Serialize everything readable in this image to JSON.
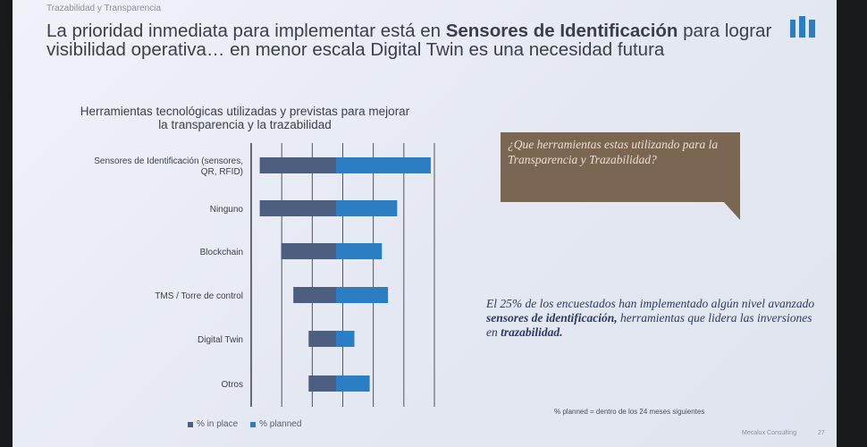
{
  "section_title": "Trazabilidad y Transparencia",
  "headline": {
    "part1": "La prioridad inmediata para implementar está en ",
    "emphasis": "Sensores de Identificación",
    "part2": " para lograr visibilidad operativa… en menor escala Digital Twin es una necesidad futura"
  },
  "chart_data": {
    "type": "bar",
    "orientation": "horizontal",
    "stacked": true,
    "title": "Herramientas tecnológicas utilizadas y previstas para mejorar la transparencia y la trazabilidad",
    "categories": [
      "Sensores de Identificación (sensores, QR, RFID)",
      "Ninguno",
      "Blockchain",
      "TMS / Torre de control",
      "Digital Twin",
      "Otros"
    ],
    "series": [
      {
        "name": "% in place",
        "values": [
          25,
          25,
          18,
          14,
          9,
          9
        ],
        "color": "#4d5f80"
      },
      {
        "name": "% planned",
        "values": [
          31,
          20,
          15,
          17,
          6,
          11
        ],
        "color": "#2a7ec1"
      }
    ],
    "xlim": [
      0,
      60
    ],
    "grid": true,
    "legend": "bottom-left"
  },
  "callout": {
    "question": "¿Que herramientas estas utilizando para la Transparencia y Trazabilidad?",
    "color": "#7b6652"
  },
  "statement": {
    "part1": "El 25% de los encuestados han implementado algún nivel avanzado ",
    "emphasis1": "sensores de identificación,",
    "part2": " herramientas que lidera las inversiones en ",
    "emphasis2": "trazabilidad."
  },
  "legend": {
    "in_place": "% in place",
    "planned": "% planned"
  },
  "note": "% planned = dentro de los 24 meses siguientes",
  "footer": "Mecalux Consulting",
  "page_number": "27"
}
